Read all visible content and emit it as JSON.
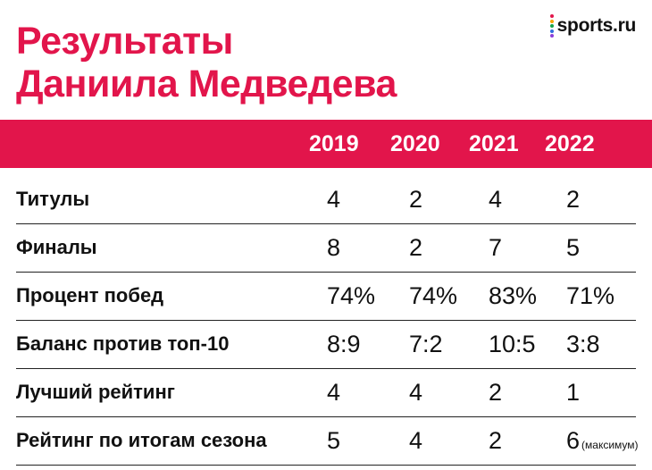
{
  "title_line1": "Результаты",
  "title_line2": "Даниила Медведева",
  "brand": {
    "name": "sports.ru",
    "dot_colors": [
      "#e2154b",
      "#f7a400",
      "#17a34a",
      "#2f6fe0",
      "#8b3fd9"
    ]
  },
  "colors": {
    "accent": "#e2154b"
  },
  "chart_data": {
    "type": "table",
    "columns": [
      "2019",
      "2020",
      "2021",
      "2022"
    ],
    "rows": [
      {
        "label": "Титулы",
        "values": [
          "4",
          "2",
          "4",
          "2"
        ]
      },
      {
        "label": "Финалы",
        "values": [
          "8",
          "2",
          "7",
          "5"
        ]
      },
      {
        "label": "Процент побед",
        "values": [
          "74%",
          "74%",
          "83%",
          "71%"
        ]
      },
      {
        "label": "Баланс против топ-10",
        "values": [
          "8:9",
          "7:2",
          "10:5",
          "3:8"
        ]
      },
      {
        "label": "Лучший рейтинг",
        "values": [
          "4",
          "4",
          "2",
          "1"
        ]
      },
      {
        "label": "Рейтинг по итогам сезона",
        "values": [
          "5",
          "4",
          "2",
          "6"
        ],
        "note": "(максимум)"
      }
    ]
  }
}
